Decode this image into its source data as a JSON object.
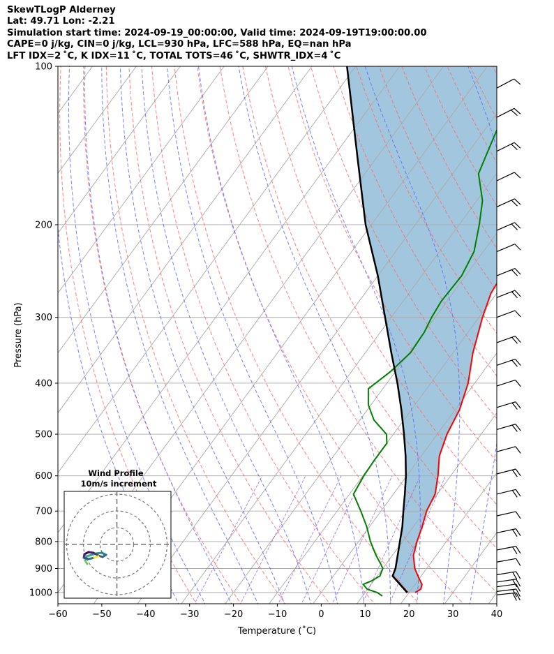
{
  "header": {
    "line1": "SkewTLogP Alderney",
    "line2": "Lat: 49.71   Lon: -2.21",
    "line3": "Simulation start time: 2024-09-19_00:00:00, Valid time: 2024-09-19T19:00:00.00",
    "line4": "CAPE=0 j/kg, CIN=0 j/kg, LCL=930 hPa, LFC=588 hPa, EQ=nan hPa",
    "line5": "LFT IDX=2 ˚C, K IDX=11 ˚C, TOTAL TOTS=46 ˚C, SHWTR_IDX=4 ˚C"
  },
  "axes": {
    "xlabel": "Temperature (˚C)",
    "ylabel": "Pressure (hPa)",
    "x_ticks": [
      "−60",
      "−50",
      "−40",
      "−30",
      "−20",
      "−10",
      "0",
      "10",
      "20",
      "30",
      "40"
    ],
    "y_ticks": [
      "100",
      "200",
      "300",
      "400",
      "500",
      "600",
      "700",
      "800",
      "900",
      "1000"
    ]
  },
  "hodograph": {
    "title": "Wind Profile",
    "subtitle": "10m/s increment"
  },
  "colors": {
    "temperature": "#ff0000",
    "dewpoint": "#008000",
    "parcel": "#000000",
    "cape_fill": "#a2c6de",
    "dry_adiabat": "#ff6b6b",
    "moist_adiabat": "#5a6bff",
    "mixing_ratio": "#9955cc",
    "isotherm": "#aaaaaa"
  },
  "chart_data": {
    "type": "line",
    "diagram": "skew-t log-p",
    "p_range_hpa": [
      1050,
      100
    ],
    "t_range_c": [
      -60,
      40
    ],
    "y_scale": "log",
    "grid": true,
    "series": [
      {
        "key": "temperature",
        "p": [
          1000,
          985,
          965,
          935,
          900,
          850,
          800,
          750,
          700,
          650,
          600,
          550,
          500,
          450,
          400,
          350,
          300,
          270,
          250,
          235,
          220,
          200,
          180,
          170,
          150,
          130,
          115,
          100
        ],
        "t": [
          21.4,
          22.1,
          21.6,
          19.6,
          17.3,
          14.8,
          13.3,
          12.0,
          10.4,
          9.5,
          7.1,
          4.1,
          2.2,
          1.0,
          -1.5,
          -5.5,
          -9.2,
          -11.3,
          -11.8,
          -11.8,
          -11.3,
          -8.8,
          -5.6,
          -3.0,
          -0.2,
          3.1,
          5.6,
          7.9
        ]
      },
      {
        "key": "dewpoint",
        "p": [
          1015,
          1000,
          985,
          965,
          950,
          930,
          900,
          880,
          850,
          800,
          750,
          700,
          650,
          600,
          560,
          520,
          500,
          470,
          440,
          410,
          380,
          350,
          320,
          300,
          280,
          250,
          225,
          200,
          180,
          160,
          140,
          120,
          100
        ],
        "t": [
          14.5,
          12.8,
          9.9,
          8.2,
          9.5,
          10.6,
          10.0,
          8.6,
          6.3,
          2.7,
          -0.6,
          -4.6,
          -9.1,
          -9.8,
          -10.0,
          -10.0,
          -11.6,
          -16.8,
          -20.6,
          -23.3,
          -21.1,
          -19.7,
          -20.0,
          -20.8,
          -21.3,
          -20.9,
          -22.1,
          -25.4,
          -28.7,
          -34.1,
          -36.3,
          -38.7,
          -42.2
        ]
      },
      {
        "key": "parcel",
        "p": [
          1000,
          930,
          900,
          850,
          800,
          750,
          700,
          650,
          600,
          550,
          500,
          450,
          400,
          350,
          300,
          250,
          200,
          150,
          100
        ],
        "t": [
          19.6,
          13.5,
          12.9,
          11.2,
          9.4,
          7.5,
          5.1,
          2.6,
          -0.2,
          -3.6,
          -7.6,
          -12.2,
          -17.6,
          -24.1,
          -31.4,
          -40.0,
          -51.3,
          -64.1,
          -82.0
        ]
      }
    ]
  }
}
